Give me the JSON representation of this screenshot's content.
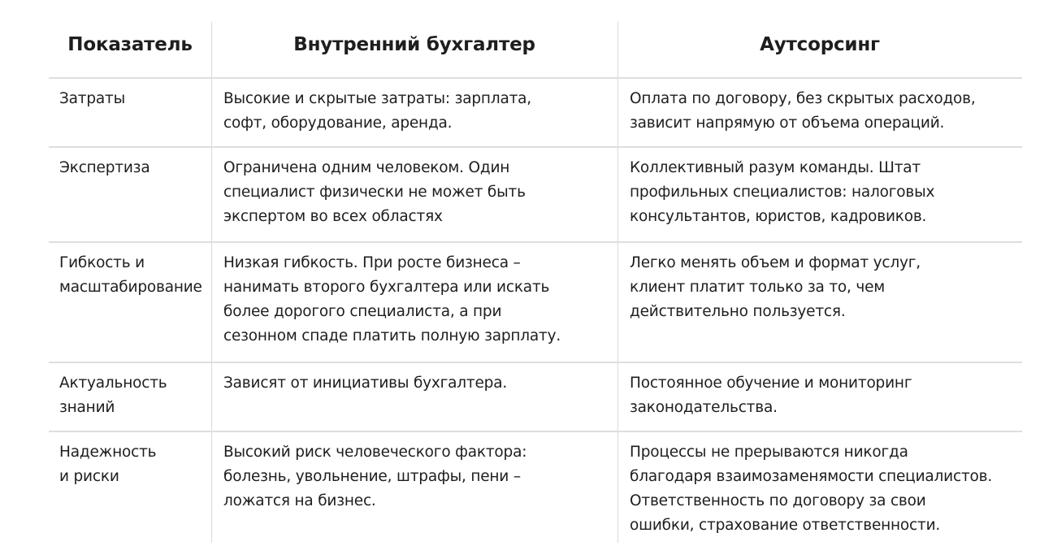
{
  "table": {
    "headers": [
      "Показатель",
      "Внутренний бухгалтер",
      "Аутсорсинг"
    ],
    "rows": [
      {
        "indicator": [
          "Затраты"
        ],
        "internal": [
          "Высокие и скрытые затраты: зарплата,",
          "софт, оборудование, аренда."
        ],
        "outsourcing": [
          "Оплата по договору, без скрытых расходов,",
          "зависит напрямую от объема операций."
        ]
      },
      {
        "indicator": [
          "Экспертиза"
        ],
        "internal": [
          "Ограничена одним человеком. Один",
          "специалист физически не может быть",
          "экспертом во всех областях"
        ],
        "outsourcing": [
          "Коллективный разум команды. Штат",
          "профильных специалистов: налоговых",
          "консультантов, юристов, кадровиков."
        ]
      },
      {
        "indicator": [
          "Гибкость и",
          "масштабирование"
        ],
        "internal": [
          "Низкая гибкость. При росте бизнеса –",
          "нанимать второго бухгалтера или искать",
          "более дорогого специалиста, а при",
          "сезонном спаде платить полную зарплату."
        ],
        "outsourcing": [
          "Легко менять объем и формат услуг,",
          "клиент платит только за то, чем",
          "действительно пользуется."
        ]
      },
      {
        "indicator": [
          "Актуальность",
          "знаний"
        ],
        "internal": [
          "Зависят от инициативы бухгалтера."
        ],
        "outsourcing": [
          "Постоянное обучение и мониторинг",
          "законодательства."
        ]
      },
      {
        "indicator": [
          "Надежность",
          "и риски"
        ],
        "internal": [
          "Высокий риск человеческого фактора:",
          "болезнь, увольнение, штрафы, пени –",
          "ложатся на бизнес."
        ],
        "outsourcing": [
          "Процессы не прерываются никогда",
          "благодаря взаимозаменямости специалистов.",
          "Ответственность по договору за свои",
          "ошибки, страхование ответственности."
        ]
      }
    ]
  }
}
